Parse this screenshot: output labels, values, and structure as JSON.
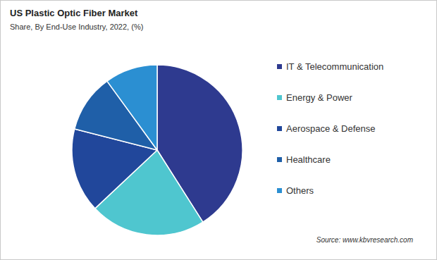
{
  "chart_data": {
    "type": "pie",
    "title": "US Plastic Optic Fiber Market",
    "subtitle": "Share, By End-Use Industry, 2022, (%)",
    "categories": [
      "IT & Telecommunication",
      "Energy & Power",
      "Aerospace & Defense",
      "Healthcare",
      "Others"
    ],
    "values": [
      41,
      22,
      16,
      11,
      10
    ],
    "colors": [
      "#2e3a8f",
      "#4fc6cf",
      "#21479b",
      "#1f5fa8",
      "#2b8fd2"
    ],
    "legend": "right",
    "data_labels": false,
    "source": "Source: www.kbvresearch.com"
  }
}
